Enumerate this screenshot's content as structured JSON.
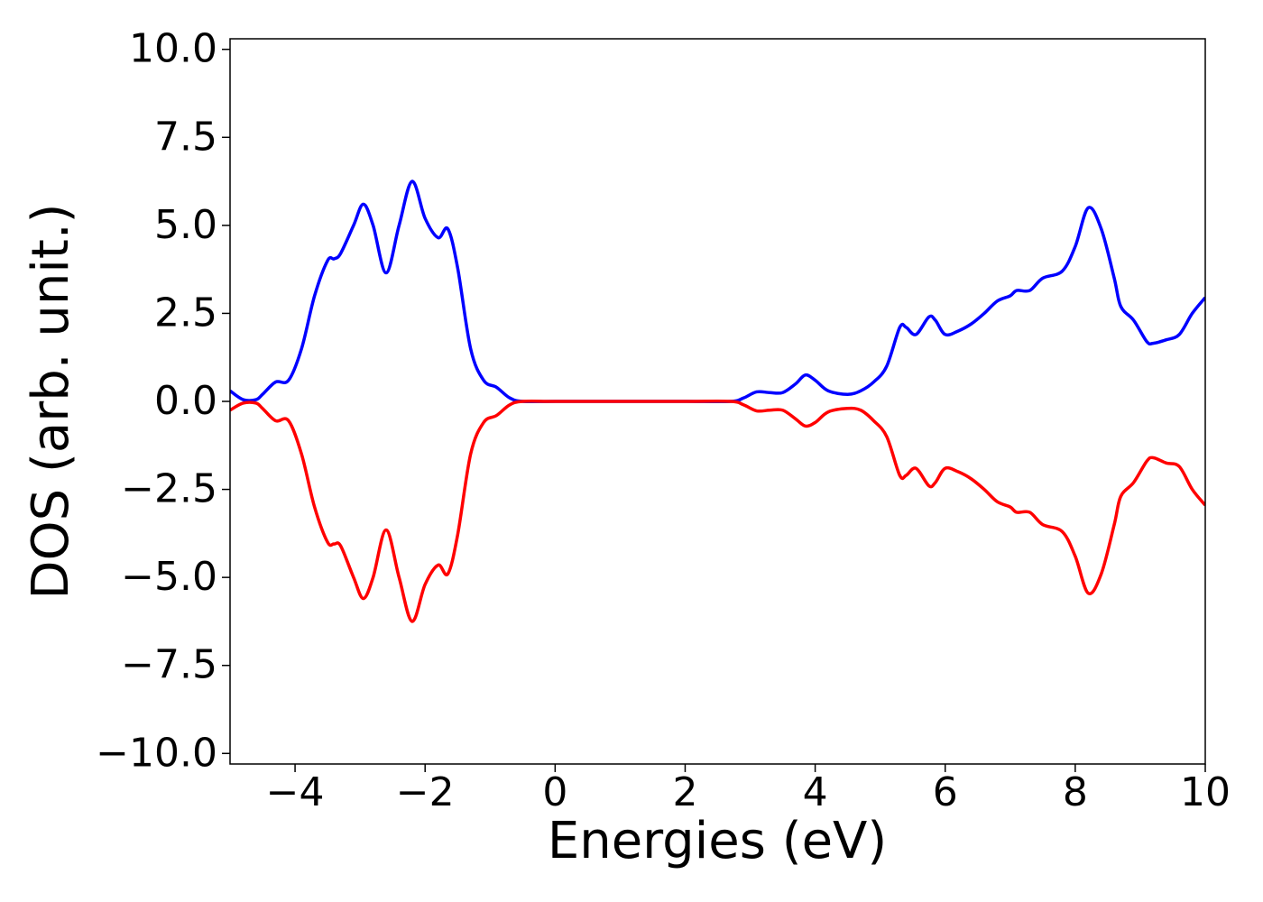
{
  "chart_data": {
    "type": "line",
    "xlabel": "Energies (eV)",
    "ylabel": "DOS (arb. unit.)",
    "x": [
      -5,
      -4.8,
      -4.6,
      -4.5,
      -4.3,
      -4.1,
      -3.9,
      -3.7,
      -3.5,
      -3.4,
      -3.3,
      -3.1,
      -2.95,
      -2.8,
      -2.6,
      -2.4,
      -2.2,
      -2.0,
      -1.8,
      -1.65,
      -1.5,
      -1.3,
      -1.1,
      -0.9,
      -0.7,
      -0.5,
      0,
      1,
      2,
      2.7,
      2.9,
      3.1,
      3.3,
      3.5,
      3.7,
      3.85,
      4.0,
      4.2,
      4.5,
      4.7,
      4.9,
      5.1,
      5.3,
      5.4,
      5.55,
      5.75,
      5.85,
      6.0,
      6.2,
      6.4,
      6.6,
      6.8,
      7.0,
      7.1,
      7.3,
      7.5,
      7.8,
      8.0,
      8.2,
      8.4,
      8.6,
      8.7,
      8.9,
      9.1,
      9.2,
      9.4,
      9.6,
      9.8,
      10
    ],
    "series": [
      {
        "color": "#0000ff",
        "values": [
          0.3,
          0.05,
          0.05,
          0.2,
          0.55,
          0.6,
          1.5,
          3.0,
          4.0,
          4.05,
          4.2,
          5.0,
          5.6,
          5.0,
          3.65,
          5.0,
          6.25,
          5.2,
          4.65,
          4.9,
          3.8,
          1.5,
          0.6,
          0.4,
          0.1,
          0,
          0,
          0,
          0,
          0,
          0.1,
          0.27,
          0.25,
          0.25,
          0.5,
          0.75,
          0.6,
          0.3,
          0.2,
          0.3,
          0.55,
          1.0,
          2.1,
          2.1,
          1.9,
          2.4,
          2.3,
          1.9,
          2.0,
          2.2,
          2.5,
          2.85,
          3.0,
          3.15,
          3.15,
          3.5,
          3.7,
          4.4,
          5.5,
          4.9,
          3.5,
          2.7,
          2.3,
          1.7,
          1.65,
          1.75,
          1.9,
          2.5,
          2.95
        ]
      },
      {
        "color": "#ff0000",
        "values": [
          -0.25,
          -0.05,
          -0.05,
          -0.2,
          -0.55,
          -0.55,
          -1.5,
          -3.0,
          -4.0,
          -4.05,
          -4.1,
          -5.0,
          -5.6,
          -5.0,
          -3.65,
          -5.0,
          -6.25,
          -5.2,
          -4.65,
          -4.9,
          -3.8,
          -1.5,
          -0.6,
          -0.4,
          -0.1,
          0,
          0,
          0,
          0,
          0,
          -0.1,
          -0.27,
          -0.25,
          -0.25,
          -0.5,
          -0.7,
          -0.6,
          -0.3,
          -0.2,
          -0.25,
          -0.55,
          -1.0,
          -2.1,
          -2.1,
          -1.9,
          -2.4,
          -2.3,
          -1.9,
          -2.0,
          -2.2,
          -2.5,
          -2.85,
          -3.0,
          -3.15,
          -3.15,
          -3.5,
          -3.7,
          -4.4,
          -5.45,
          -4.9,
          -3.5,
          -2.7,
          -2.3,
          -1.7,
          -1.6,
          -1.75,
          -1.85,
          -2.5,
          -2.95
        ]
      }
    ],
    "xlim": [
      -5,
      10
    ],
    "ylim": [
      -10.3,
      10.3
    ],
    "xticks": [
      {
        "value": -4,
        "label": "−4"
      },
      {
        "value": -2,
        "label": "−2"
      },
      0,
      2,
      4,
      6,
      8,
      10
    ],
    "yticks": [
      {
        "value": -10,
        "label": "−10.0"
      },
      {
        "value": -7.5,
        "label": "−7.5"
      },
      {
        "value": -5,
        "label": "−5.0"
      },
      {
        "value": -2.5,
        "label": "−2.5"
      },
      {
        "value": 0,
        "label": "0.0"
      },
      {
        "value": 2.5,
        "label": "2.5"
      },
      {
        "value": 5,
        "label": "5.0"
      },
      {
        "value": 7.5,
        "label": "7.5"
      },
      {
        "value": 10,
        "label": "10.0"
      }
    ],
    "grid": false
  }
}
